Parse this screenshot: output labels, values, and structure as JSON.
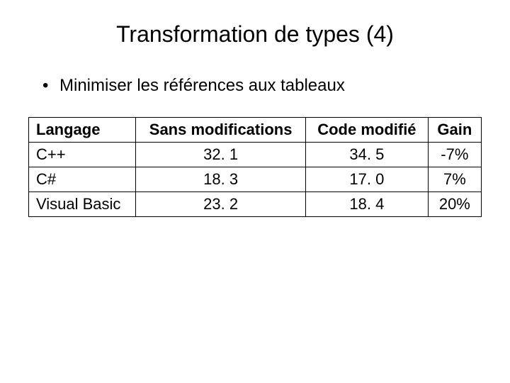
{
  "title": "Transformation de types (4)",
  "bullet": "Minimiser les références aux tableaux",
  "table": {
    "columns": [
      "Langage",
      "Sans modifications",
      "Code modifié",
      "Gain"
    ],
    "rows": [
      [
        "C++",
        "32. 1",
        "34. 5",
        "-7%"
      ],
      [
        "C#",
        "18. 3",
        "17. 0",
        "7%"
      ],
      [
        "Visual Basic",
        "23. 2",
        "18. 4",
        "20%"
      ]
    ],
    "column_alignment": [
      "left",
      "center",
      "center",
      "center"
    ],
    "border_color": "#000000",
    "background_color": "#ffffff",
    "header_fontweight": "bold",
    "cell_fontsize": 22
  },
  "colors": {
    "text": "#000000",
    "background": "#ffffff"
  },
  "fonts": {
    "title_size": 32,
    "body_size": 24,
    "family": "Arial"
  }
}
